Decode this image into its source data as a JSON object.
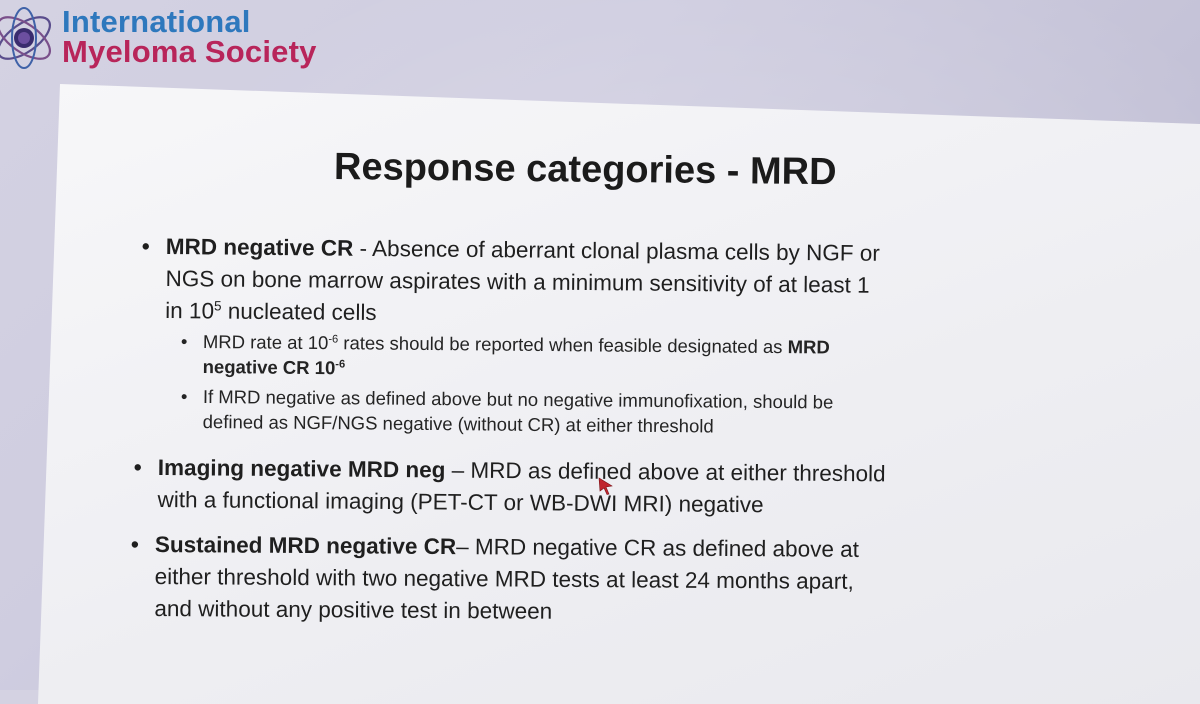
{
  "logo": {
    "line1": "International",
    "line2": "Myeloma Society",
    "colors": {
      "line1": "#2e78bd",
      "line2": "#b8255a"
    }
  },
  "slide": {
    "title": "Response categories - MRD",
    "bullets": [
      {
        "bold": "MRD negative CR",
        "text": " - Absence of aberrant clonal plasma cells by NGF or",
        "line2": "NGS on bone marrow aspirates with a minimum sensitivity of at least 1",
        "line3_pre": "in 10",
        "line3_sup": "5",
        "line3_post": " nucleated cells",
        "subs": [
          {
            "pre": "MRD rate at 10",
            "sup": "-6",
            "mid": " rates should be reported when feasible designated as ",
            "bold1": "MRD",
            "bold2_pre": "negative CR 10",
            "bold2_sup": "-6"
          },
          {
            "line1": "If MRD negative as defined above but no negative immunofixation, should be",
            "line2": "defined as NGF/NGS negative (without CR) at either threshold"
          }
        ]
      },
      {
        "bold": "Imaging negative MRD neg",
        "text": " – MRD as defined above at either threshold",
        "line2": "with a functional imaging (PET-CT or WB-DWI MRI) negative"
      },
      {
        "bold": "Sustained MRD negative CR",
        "text": "– MRD negative CR as defined above at",
        "line2": "either threshold with two negative MRD tests at least 24 months apart,",
        "line3": "and without any positive test in between"
      }
    ],
    "bullet_glyph": "•"
  }
}
